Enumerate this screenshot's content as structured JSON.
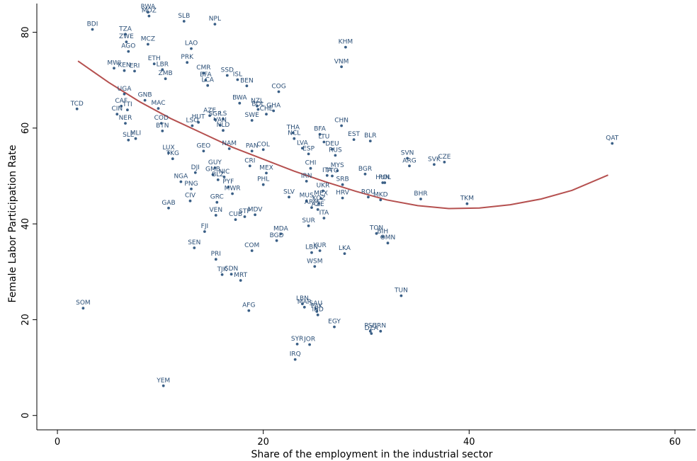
{
  "chart_data": {
    "type": "scatter",
    "xlabel": "Share of the employment in the industrial sector",
    "ylabel": "Female Labor Participation Rate",
    "xlim": [
      -2,
      62
    ],
    "ylim": [
      -3,
      86
    ],
    "xticks": [
      0,
      20,
      40,
      60
    ],
    "yticks": [
      0,
      20,
      40,
      60,
      80
    ],
    "grid": false,
    "colors": {
      "points": "#3a5f86",
      "labels": "#2b4f77",
      "fit": "#b5504f",
      "axis": "#000000"
    },
    "fit_line": {
      "type": "quadratic",
      "points": [
        [
          2,
          74
        ],
        [
          5,
          69.5
        ],
        [
          8,
          65.5
        ],
        [
          11,
          62
        ],
        [
          14,
          59
        ],
        [
          17,
          56
        ],
        [
          20,
          53.5
        ],
        [
          23,
          51
        ],
        [
          26,
          48.8
        ],
        [
          29,
          46.8
        ],
        [
          32,
          45
        ],
        [
          35,
          43.8
        ],
        [
          38,
          43.2
        ],
        [
          41,
          43.3
        ],
        [
          44,
          44
        ],
        [
          47,
          45.2
        ],
        [
          50,
          47
        ],
        [
          53.5,
          50.2
        ]
      ]
    },
    "points": [
      {
        "label": "RWA",
        "x": 8.8,
        "y": 84.2
      },
      {
        "label": "MOZ",
        "x": 8.9,
        "y": 83.4
      },
      {
        "label": "SLB",
        "x": 12.3,
        "y": 82.3
      },
      {
        "label": "NPL",
        "x": 15.3,
        "y": 81.7
      },
      {
        "label": "BDI",
        "x": 3.4,
        "y": 80.6
      },
      {
        "label": "TZA",
        "x": 6.6,
        "y": 79.6
      },
      {
        "label": "ZWE",
        "x": 6.7,
        "y": 78.0
      },
      {
        "label": "MCZ",
        "x": 8.8,
        "y": 77.5
      },
      {
        "label": "AGO",
        "x": 6.9,
        "y": 76.0
      },
      {
        "label": "KHM",
        "x": 28.0,
        "y": 76.9
      },
      {
        "label": "LAO",
        "x": 13.0,
        "y": 76.6
      },
      {
        "label": "PRK",
        "x": 12.6,
        "y": 73.7
      },
      {
        "label": "ETH",
        "x": 9.4,
        "y": 73.4
      },
      {
        "label": "VNM",
        "x": 27.6,
        "y": 72.8
      },
      {
        "label": "MWI",
        "x": 5.5,
        "y": 72.5
      },
      {
        "label": "KEN",
        "x": 6.5,
        "y": 72.0
      },
      {
        "label": "ERI",
        "x": 7.5,
        "y": 71.9
      },
      {
        "label": "LBR",
        "x": 10.2,
        "y": 72.2
      },
      {
        "label": "ZMB",
        "x": 10.5,
        "y": 70.3
      },
      {
        "label": "CMR",
        "x": 14.2,
        "y": 71.5
      },
      {
        "label": "BFA",
        "x": 14.4,
        "y": 70.0
      },
      {
        "label": "SSD",
        "x": 16.5,
        "y": 71.0
      },
      {
        "label": "ISL",
        "x": 17.5,
        "y": 70.1
      },
      {
        "label": "LCA",
        "x": 14.6,
        "y": 68.9
      },
      {
        "label": "BEN",
        "x": 18.4,
        "y": 68.8
      },
      {
        "label": "COG",
        "x": 21.5,
        "y": 67.6
      },
      {
        "label": "UGA",
        "x": 6.5,
        "y": 67.1
      },
      {
        "label": "GNB",
        "x": 8.5,
        "y": 65.8
      },
      {
        "label": "BWA",
        "x": 17.7,
        "y": 65.2
      },
      {
        "label": "NZL",
        "x": 19.4,
        "y": 64.6
      },
      {
        "label": "CAF",
        "x": 6.2,
        "y": 64.6
      },
      {
        "label": "MAC",
        "x": 9.8,
        "y": 64.1
      },
      {
        "label": "BOL",
        "x": 19.5,
        "y": 63.9
      },
      {
        "label": "GHA",
        "x": 21.0,
        "y": 63.6
      },
      {
        "label": "TCD",
        "x": 1.9,
        "y": 64.0
      },
      {
        "label": "TTI",
        "x": 6.8,
        "y": 63.8
      },
      {
        "label": "CHE",
        "x": 20.3,
        "y": 62.9
      },
      {
        "label": "AZE",
        "x": 14.8,
        "y": 62.6
      },
      {
        "label": "CIN",
        "x": 5.8,
        "y": 62.9
      },
      {
        "label": "SGP",
        "x": 15.3,
        "y": 61.8
      },
      {
        "label": "LS",
        "x": 16.1,
        "y": 61.9
      },
      {
        "label": "SWE",
        "x": 18.9,
        "y": 61.6
      },
      {
        "label": "CHN",
        "x": 27.6,
        "y": 60.5
      },
      {
        "label": "COD",
        "x": 10.1,
        "y": 61.0
      },
      {
        "label": "NER",
        "x": 6.6,
        "y": 61.0
      },
      {
        "label": "HUT",
        "x": 13.7,
        "y": 61.2
      },
      {
        "label": "LSO",
        "x": 13.1,
        "y": 60.5
      },
      {
        "label": "VAN",
        "x": 15.8,
        "y": 60.6
      },
      {
        "label": "BTN",
        "x": 10.2,
        "y": 59.4
      },
      {
        "label": "NLD",
        "x": 16.1,
        "y": 59.5
      },
      {
        "label": "THA",
        "x": 22.9,
        "y": 59.0
      },
      {
        "label": "BFA",
        "x": 25.5,
        "y": 58.7
      },
      {
        "label": "MLI",
        "x": 7.6,
        "y": 57.8
      },
      {
        "label": "SLE",
        "x": 6.9,
        "y": 57.5
      },
      {
        "label": "NCL",
        "x": 23.0,
        "y": 57.8
      },
      {
        "label": "LTU",
        "x": 25.9,
        "y": 57.1
      },
      {
        "label": "EST",
        "x": 28.8,
        "y": 57.6
      },
      {
        "label": "BLR",
        "x": 30.4,
        "y": 57.3
      },
      {
        "label": "DEU",
        "x": 26.7,
        "y": 55.6
      },
      {
        "label": "LVA",
        "x": 23.8,
        "y": 55.8
      },
      {
        "label": "NAM",
        "x": 16.7,
        "y": 55.7
      },
      {
        "label": "GEO",
        "x": 14.2,
        "y": 55.2
      },
      {
        "label": "PAN",
        "x": 18.9,
        "y": 55.2
      },
      {
        "label": "COL",
        "x": 20.0,
        "y": 55.5
      },
      {
        "label": "ESP",
        "x": 24.4,
        "y": 54.6
      },
      {
        "label": "RUS",
        "x": 27.0,
        "y": 54.3
      },
      {
        "label": "LUX",
        "x": 10.8,
        "y": 54.8
      },
      {
        "label": "TKG",
        "x": 11.2,
        "y": 53.6
      },
      {
        "label": "QAT",
        "x": 53.9,
        "y": 56.8
      },
      {
        "label": "SVN",
        "x": 34.0,
        "y": 53.7
      },
      {
        "label": "ARG",
        "x": 34.2,
        "y": 52.1
      },
      {
        "label": "SVK",
        "x": 36.6,
        "y": 52.4
      },
      {
        "label": "CZE",
        "x": 37.6,
        "y": 52.9
      },
      {
        "label": "CRI",
        "x": 18.7,
        "y": 52.1
      },
      {
        "label": "GUY",
        "x": 15.3,
        "y": 51.7
      },
      {
        "label": "MYS",
        "x": 27.2,
        "y": 51.1
      },
      {
        "label": "CHI",
        "x": 24.6,
        "y": 51.6
      },
      {
        "label": "DJI",
        "x": 13.4,
        "y": 50.7
      },
      {
        "label": "GMB",
        "x": 15.1,
        "y": 50.3
      },
      {
        "label": "ITA",
        "x": 26.2,
        "y": 50.1
      },
      {
        "label": "BGR",
        "x": 29.9,
        "y": 50.4
      },
      {
        "label": "MEX",
        "x": 20.3,
        "y": 50.6
      },
      {
        "label": "TTO",
        "x": 26.7,
        "y": 50.0
      },
      {
        "label": "BLZ",
        "x": 15.6,
        "y": 49.2
      },
      {
        "label": "NIC",
        "x": 16.2,
        "y": 49.8
      },
      {
        "label": "NGA",
        "x": 12.0,
        "y": 48.8
      },
      {
        "label": "IRN",
        "x": 24.2,
        "y": 48.9
      },
      {
        "label": "PHL",
        "x": 20.0,
        "y": 48.2
      },
      {
        "label": "HUN",
        "x": 31.6,
        "y": 48.6
      },
      {
        "label": "POL",
        "x": 31.8,
        "y": 48.6
      },
      {
        "label": "SRB",
        "x": 27.7,
        "y": 48.2
      },
      {
        "label": "PYF",
        "x": 16.6,
        "y": 47.7
      },
      {
        "label": "PNG",
        "x": 13.0,
        "y": 47.3
      },
      {
        "label": "UKR",
        "x": 25.8,
        "y": 46.9
      },
      {
        "label": "MWR",
        "x": 17.0,
        "y": 46.3
      },
      {
        "label": "SLV",
        "x": 22.5,
        "y": 45.6
      },
      {
        "label": "HRV",
        "x": 27.7,
        "y": 45.4
      },
      {
        "label": "ROU",
        "x": 30.2,
        "y": 45.6
      },
      {
        "label": "MKD",
        "x": 31.4,
        "y": 45.0
      },
      {
        "label": "BHR",
        "x": 35.3,
        "y": 45.2
      },
      {
        "label": "TKM",
        "x": 39.8,
        "y": 44.2
      },
      {
        "label": "MUS",
        "x": 24.2,
        "y": 44.8
      },
      {
        "label": "MEX",
        "x": 25.6,
        "y": 45.3
      },
      {
        "label": "KOZ",
        "x": 25.4,
        "y": 44.2
      },
      {
        "label": "CIV",
        "x": 12.9,
        "y": 44.8
      },
      {
        "label": "GRC",
        "x": 15.5,
        "y": 44.5
      },
      {
        "label": "ARM",
        "x": 24.7,
        "y": 43.4
      },
      {
        "label": "AZE",
        "x": 25.3,
        "y": 43.0
      },
      {
        "label": "GAB",
        "x": 10.8,
        "y": 43.3
      },
      {
        "label": "VEN",
        "x": 15.4,
        "y": 41.8
      },
      {
        "label": "CUB",
        "x": 17.3,
        "y": 40.9
      },
      {
        "label": "STP",
        "x": 18.2,
        "y": 41.5
      },
      {
        "label": "MDV",
        "x": 19.2,
        "y": 41.9
      },
      {
        "label": "ITA",
        "x": 25.9,
        "y": 41.2
      },
      {
        "label": "SUR",
        "x": 24.4,
        "y": 39.6
      },
      {
        "label": "FJI",
        "x": 14.3,
        "y": 38.4
      },
      {
        "label": "MDA",
        "x": 21.7,
        "y": 37.9
      },
      {
        "label": "TON",
        "x": 31.0,
        "y": 38.0
      },
      {
        "label": "BIH",
        "x": 31.6,
        "y": 37.3
      },
      {
        "label": "OMN",
        "x": 32.1,
        "y": 36.0
      },
      {
        "label": "BGD",
        "x": 21.3,
        "y": 36.5
      },
      {
        "label": "SEN",
        "x": 13.3,
        "y": 35.0
      },
      {
        "label": "COM",
        "x": 18.9,
        "y": 34.4
      },
      {
        "label": "LBN",
        "x": 24.7,
        "y": 34.0
      },
      {
        "label": "YUR",
        "x": 25.5,
        "y": 34.4
      },
      {
        "label": "LKA",
        "x": 27.9,
        "y": 33.8
      },
      {
        "label": "PRI",
        "x": 15.4,
        "y": 32.6
      },
      {
        "label": "WSM",
        "x": 25.0,
        "y": 31.1
      },
      {
        "label": "TJK",
        "x": 16.0,
        "y": 29.4
      },
      {
        "label": "SDN",
        "x": 16.9,
        "y": 29.5
      },
      {
        "label": "MRT",
        "x": 17.8,
        "y": 28.2
      },
      {
        "label": "TUN",
        "x": 33.4,
        "y": 25.0
      },
      {
        "label": "SOM",
        "x": 2.5,
        "y": 22.4
      },
      {
        "label": "AFG",
        "x": 18.6,
        "y": 21.9
      },
      {
        "label": "LBN",
        "x": 23.8,
        "y": 23.3
      },
      {
        "label": "MAR",
        "x": 24.0,
        "y": 22.6
      },
      {
        "label": "SAU",
        "x": 25.1,
        "y": 22.3
      },
      {
        "label": "PAK",
        "x": 25.2,
        "y": 21.7
      },
      {
        "label": "IND",
        "x": 25.3,
        "y": 21.0
      },
      {
        "label": "EGY",
        "x": 26.9,
        "y": 18.5
      },
      {
        "label": "PSE",
        "x": 30.4,
        "y": 17.6
      },
      {
        "label": "DZA",
        "x": 30.5,
        "y": 17.1
      },
      {
        "label": "IRN",
        "x": 31.4,
        "y": 17.6
      },
      {
        "label": "SYR",
        "x": 23.3,
        "y": 14.9
      },
      {
        "label": "JOR",
        "x": 24.5,
        "y": 14.8
      },
      {
        "label": "IRQ",
        "x": 23.1,
        "y": 11.7
      },
      {
        "label": "YEM",
        "x": 10.3,
        "y": 6.2
      }
    ]
  }
}
